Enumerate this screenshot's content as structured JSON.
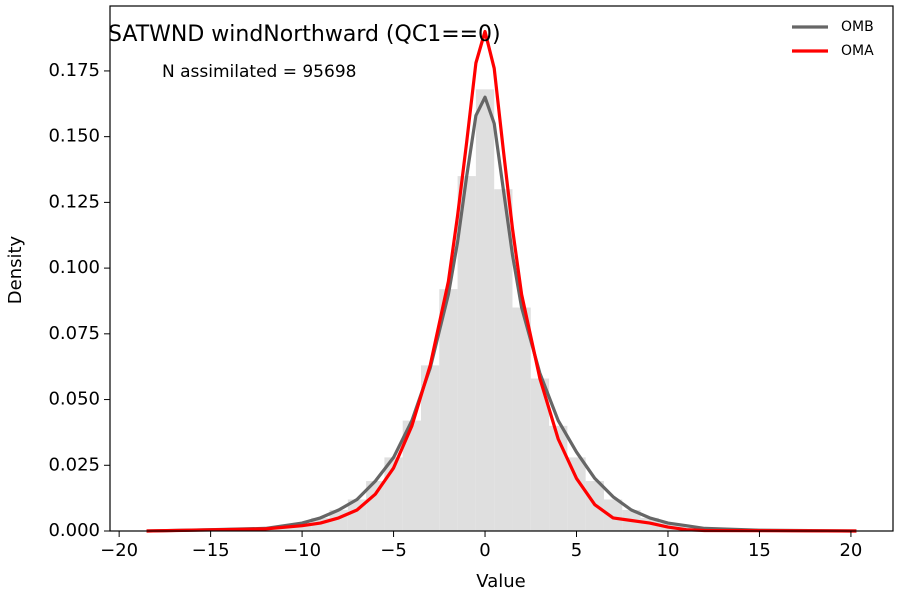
{
  "chart_data": {
    "type": "line",
    "title": "SATWND windNorthward (QC1==0)",
    "annotation": "N assimilated = 95698",
    "x_label": "Value",
    "y_label": "Density",
    "x": [
      -18.5,
      -15,
      -12,
      -10,
      -9,
      -8,
      -7,
      -6,
      -5,
      -4,
      -3,
      -2,
      -1.5,
      -1,
      -0.5,
      0,
      0.5,
      1,
      1.5,
      2,
      3,
      4,
      5,
      6,
      7,
      8,
      9,
      10,
      11,
      12,
      15,
      20.3
    ],
    "series": [
      {
        "name": "OMB",
        "color": "#666666",
        "values": [
          0,
          0.0005,
          0.001,
          0.003,
          0.005,
          0.008,
          0.012,
          0.019,
          0.028,
          0.042,
          0.062,
          0.09,
          0.11,
          0.135,
          0.158,
          0.165,
          0.155,
          0.13,
          0.105,
          0.085,
          0.06,
          0.042,
          0.03,
          0.02,
          0.013,
          0.008,
          0.005,
          0.003,
          0.002,
          0.001,
          0.0003,
          0
        ]
      },
      {
        "name": "OMA",
        "color": "#ff0000",
        "values": [
          0,
          0.0004,
          0.0008,
          0.002,
          0.003,
          0.005,
          0.008,
          0.014,
          0.024,
          0.04,
          0.063,
          0.095,
          0.12,
          0.148,
          0.178,
          0.19,
          0.176,
          0.145,
          0.115,
          0.09,
          0.058,
          0.035,
          0.02,
          0.01,
          0.005,
          0.004,
          0.003,
          0.0015,
          0.0005,
          0.0002,
          0.0001,
          0
        ]
      }
    ],
    "histogram": {
      "color": "#dfdfdf",
      "bins": [
        -18.5,
        -17.5,
        -16.5,
        -15.5,
        -14.5,
        -13.5,
        -12.5,
        -11.5,
        -10.5,
        -9.5,
        -8.5,
        -7.5,
        -6.5,
        -5.5,
        -4.5,
        -3.5,
        -2.5,
        -1.5,
        -0.5,
        0.5,
        1.5,
        2.5,
        3.5,
        4.5,
        5.5,
        6.5,
        7.5,
        8.5,
        9.5,
        10.5,
        11.5,
        12.5,
        13.5,
        14.5,
        15.5,
        16.5,
        17.5,
        18.5,
        19.5,
        20.5
      ],
      "values": [
        0,
        0,
        0.0002,
        0.0003,
        0.0004,
        0.0005,
        0.001,
        0.002,
        0.003,
        0.005,
        0.008,
        0.012,
        0.019,
        0.028,
        0.042,
        0.063,
        0.092,
        0.135,
        0.168,
        0.13,
        0.085,
        0.058,
        0.04,
        0.028,
        0.019,
        0.012,
        0.008,
        0.005,
        0.003,
        0.002,
        0.001,
        0.0006,
        0.0004,
        0.0003,
        0.0002,
        0.0001,
        0.0001,
        0,
        0
      ]
    },
    "xlim": [
      -20.5,
      22.3
    ],
    "xticks": [
      {
        "value": -20,
        "label": "−20"
      },
      {
        "value": -15,
        "label": "−15"
      },
      {
        "value": -10,
        "label": "−10"
      },
      {
        "value": -5,
        "label": "−5"
      },
      0,
      5,
      10,
      15,
      20
    ],
    "ylim": [
      0,
      0.1997
    ],
    "yticks": [
      {
        "value": 0,
        "label": "0.000"
      },
      {
        "value": 0.025,
        "label": "0.025"
      },
      {
        "value": 0.05,
        "label": "0.050"
      },
      {
        "value": 0.075,
        "label": "0.075"
      },
      {
        "value": 0.1,
        "label": "0.100"
      },
      {
        "value": 0.125,
        "label": "0.125"
      },
      {
        "value": 0.15,
        "label": "0.150"
      },
      {
        "value": 0.175,
        "label": "0.175"
      }
    ],
    "legend": "upper right",
    "grid": false
  }
}
